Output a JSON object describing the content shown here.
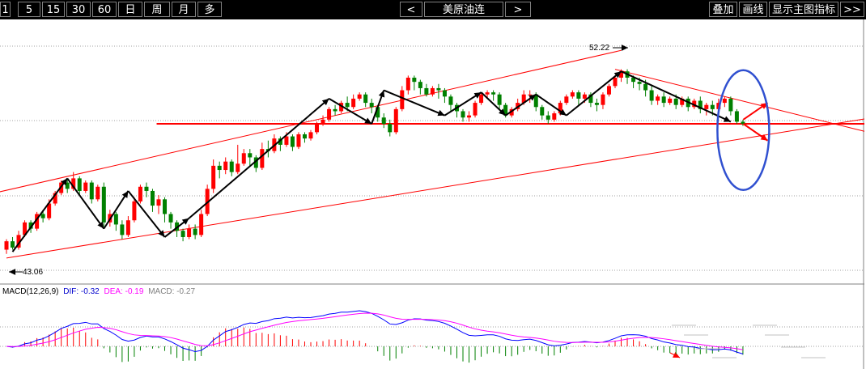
{
  "toolbar": {
    "periods": [
      "1",
      "5",
      "15",
      "30",
      "60",
      "日",
      "周",
      "月",
      "多"
    ],
    "prev": "<",
    "symbol": "美原油连",
    "next": ">",
    "right_buttons": [
      "叠加",
      "画线",
      "显示主图指标",
      ">>"
    ]
  },
  "chart_data": {
    "type": "candlestick",
    "price_range": [
      42.0,
      54.5
    ],
    "labels": {
      "high": "52.22",
      "low": "43.06"
    },
    "candles": [
      [
        43.6,
        44.0,
        43.4,
        44.1
      ],
      [
        44.0,
        43.7,
        43.6,
        44.2
      ],
      [
        43.7,
        44.3,
        43.6,
        44.5
      ],
      [
        44.3,
        44.9,
        44.2,
        45.0
      ],
      [
        44.9,
        44.6,
        44.4,
        45.0
      ],
      [
        44.6,
        45.3,
        44.5,
        45.4
      ],
      [
        45.3,
        45.1,
        44.9,
        45.5
      ],
      [
        45.1,
        45.8,
        45.0,
        46.0
      ],
      [
        45.8,
        46.3,
        45.7,
        46.4
      ],
      [
        46.3,
        46.8,
        46.2,
        46.9
      ],
      [
        46.8,
        46.5,
        46.3,
        47.0
      ],
      [
        46.5,
        47.0,
        46.4,
        47.3
      ],
      [
        47.0,
        46.4,
        46.2,
        47.1
      ],
      [
        46.4,
        46.8,
        46.3,
        46.9
      ],
      [
        46.8,
        46.0,
        45.8,
        46.9
      ],
      [
        46.0,
        46.6,
        45.9,
        46.7
      ],
      [
        46.6,
        44.9,
        44.7,
        46.8
      ],
      [
        44.9,
        45.3,
        44.7,
        45.5
      ],
      [
        45.3,
        44.8,
        44.5,
        45.4
      ],
      [
        44.8,
        44.3,
        44.1,
        45.0
      ],
      [
        44.3,
        45.0,
        44.2,
        45.2
      ],
      [
        45.0,
        45.9,
        44.9,
        46.1
      ],
      [
        45.9,
        46.6,
        45.8,
        46.7
      ],
      [
        46.6,
        46.4,
        46.1,
        46.8
      ],
      [
        46.4,
        45.7,
        45.4,
        46.5
      ],
      [
        45.7,
        46.0,
        45.3,
        46.2
      ],
      [
        46.0,
        45.3,
        44.9,
        46.1
      ],
      [
        45.3,
        44.9,
        44.6,
        45.4
      ],
      [
        44.9,
        44.5,
        44.2,
        45.0
      ],
      [
        44.5,
        44.2,
        44.0,
        44.6
      ],
      [
        44.2,
        44.6,
        44.1,
        44.8
      ],
      [
        44.6,
        44.3,
        44.1,
        44.8
      ],
      [
        44.3,
        45.3,
        44.2,
        45.5
      ],
      [
        45.3,
        46.5,
        45.2,
        46.7
      ],
      [
        46.5,
        47.6,
        46.3,
        47.9
      ],
      [
        47.6,
        47.4,
        47.0,
        47.8
      ],
      [
        47.4,
        47.8,
        47.2,
        48.0
      ],
      [
        47.8,
        47.3,
        47.1,
        47.9
      ],
      [
        47.3,
        47.7,
        47.2,
        48.6
      ],
      [
        47.7,
        48.2,
        47.6,
        48.4
      ],
      [
        48.2,
        48.0,
        47.6,
        48.4
      ],
      [
        48.0,
        47.5,
        47.3,
        48.1
      ],
      [
        47.5,
        48.4,
        47.4,
        48.7
      ],
      [
        48.4,
        48.3,
        48.0,
        48.8
      ],
      [
        48.3,
        48.9,
        48.2,
        49.1
      ],
      [
        48.9,
        48.6,
        48.3,
        49.0
      ],
      [
        48.6,
        49.0,
        48.5,
        49.2
      ],
      [
        49.0,
        48.5,
        48.3,
        49.1
      ],
      [
        48.5,
        49.1,
        48.4,
        49.2
      ],
      [
        49.1,
        48.9,
        48.7,
        49.2
      ],
      [
        48.9,
        49.2,
        48.8,
        49.3
      ],
      [
        49.2,
        49.6,
        49.1,
        49.7
      ],
      [
        49.6,
        49.8,
        49.5,
        50.0
      ],
      [
        49.8,
        50.3,
        49.7,
        50.4
      ],
      [
        50.3,
        50.2,
        50.0,
        50.5
      ],
      [
        50.2,
        50.6,
        50.1,
        50.7
      ],
      [
        50.6,
        50.4,
        50.2,
        50.9
      ],
      [
        50.4,
        50.8,
        50.3,
        51.0
      ],
      [
        50.8,
        51.0,
        50.7,
        51.1
      ],
      [
        51.0,
        50.6,
        50.4,
        51.1
      ],
      [
        50.6,
        50.4,
        50.1,
        50.8
      ],
      [
        50.4,
        49.9,
        49.7,
        50.5
      ],
      [
        49.9,
        49.6,
        49.4,
        50.1
      ],
      [
        49.6,
        49.2,
        49.0,
        49.8
      ],
      [
        49.2,
        50.3,
        49.1,
        50.4
      ],
      [
        50.3,
        51.2,
        50.2,
        51.4
      ],
      [
        51.2,
        51.8,
        51.0,
        51.9
      ],
      [
        51.8,
        51.6,
        51.2,
        51.9
      ],
      [
        51.6,
        51.3,
        51.0,
        51.7
      ],
      [
        51.3,
        51.0,
        50.9,
        51.5
      ],
      [
        51.0,
        51.3,
        50.9,
        51.4
      ],
      [
        51.3,
        51.2,
        50.8,
        51.5
      ],
      [
        51.2,
        50.9,
        50.6,
        51.3
      ],
      [
        50.9,
        50.5,
        50.2,
        51.0
      ],
      [
        50.5,
        50.2,
        49.9,
        50.6
      ],
      [
        50.2,
        49.9,
        49.7,
        50.3
      ],
      [
        49.9,
        50.0,
        49.7,
        50.2
      ],
      [
        50.0,
        50.6,
        49.9,
        50.7
      ],
      [
        50.6,
        51.0,
        50.5,
        51.1
      ],
      [
        51.0,
        51.1,
        50.8,
        51.2
      ],
      [
        51.1,
        51.0,
        50.7,
        51.2
      ],
      [
        51.0,
        50.5,
        50.3,
        51.1
      ],
      [
        50.5,
        50.0,
        49.9,
        50.6
      ],
      [
        50.0,
        50.3,
        49.9,
        50.4
      ],
      [
        50.3,
        50.6,
        50.2,
        50.8
      ],
      [
        50.6,
        51.0,
        50.5,
        51.2
      ],
      [
        51.0,
        51.0,
        50.6,
        51.2
      ],
      [
        51.0,
        50.4,
        50.2,
        51.1
      ],
      [
        50.4,
        50.0,
        49.8,
        50.5
      ],
      [
        50.0,
        49.8,
        49.6,
        50.2
      ],
      [
        49.8,
        50.1,
        49.7,
        50.2
      ],
      [
        50.1,
        50.6,
        50.0,
        50.7
      ],
      [
        50.6,
        50.9,
        50.5,
        51.0
      ],
      [
        50.9,
        51.1,
        50.8,
        51.2
      ],
      [
        51.1,
        50.8,
        50.5,
        51.2
      ],
      [
        50.8,
        51.0,
        50.6,
        51.1
      ],
      [
        51.0,
        50.6,
        50.4,
        51.1
      ],
      [
        50.6,
        50.5,
        50.2,
        50.8
      ],
      [
        50.5,
        51.0,
        50.3,
        51.1
      ],
      [
        51.0,
        51.4,
        50.9,
        51.5
      ],
      [
        51.4,
        51.8,
        51.3,
        51.9
      ],
      [
        51.8,
        52.1,
        51.6,
        52.2
      ],
      [
        52.1,
        51.8,
        51.5,
        52.2
      ],
      [
        51.8,
        51.6,
        51.3,
        51.9
      ],
      [
        51.6,
        51.5,
        51.2,
        51.8
      ],
      [
        51.5,
        51.2,
        50.9,
        51.7
      ],
      [
        51.2,
        50.7,
        50.5,
        51.4
      ],
      [
        50.7,
        50.9,
        50.5,
        51.0
      ],
      [
        50.9,
        50.6,
        50.4,
        51.1
      ],
      [
        50.6,
        50.8,
        50.5,
        50.9
      ],
      [
        50.8,
        50.5,
        50.3,
        51.0
      ],
      [
        50.5,
        50.8,
        50.4,
        50.9
      ],
      [
        50.8,
        50.4,
        50.2,
        50.9
      ],
      [
        50.4,
        50.7,
        50.3,
        50.8
      ],
      [
        50.7,
        50.3,
        50.1,
        50.9
      ],
      [
        50.3,
        50.5,
        50.0,
        50.6
      ],
      [
        50.5,
        50.3,
        50.0,
        50.7
      ],
      [
        50.3,
        50.6,
        50.2,
        50.8
      ],
      [
        50.6,
        50.8,
        50.4,
        50.9
      ],
      [
        50.8,
        50.2,
        50.0,
        50.9
      ],
      [
        50.2,
        49.7,
        49.6,
        50.3
      ],
      [
        49.7,
        49.6,
        49.5,
        49.8
      ]
    ],
    "price_lines": [
      {
        "kind": "support",
        "price": 49.6,
        "from": 26,
        "to": 136,
        "color": "#ff0000"
      },
      {
        "kind": "upper-channel",
        "from": [
          -2,
          46.3
        ],
        "to": [
          101,
          53.1
        ],
        "color": "#ff0000"
      },
      {
        "kind": "lower-channel",
        "from": [
          0,
          43.2
        ],
        "to": [
          136,
          49.6
        ],
        "color": "#ff0000"
      },
      {
        "kind": "descending-trendline",
        "from": [
          100,
          52.2
        ],
        "to": [
          136,
          49.6
        ],
        "color": "#ff0000"
      }
    ],
    "wave_path": [
      [
        1,
        43.5
      ],
      [
        10,
        47.0
      ],
      [
        16,
        44.6
      ],
      [
        20,
        46.4
      ],
      [
        26,
        44.2
      ],
      [
        30,
        45.1
      ],
      [
        53,
        50.8
      ],
      [
        60,
        49.6
      ],
      [
        62,
        51.2
      ],
      [
        72,
        50.0
      ],
      [
        78,
        51.1
      ],
      [
        82,
        50.0
      ],
      [
        87,
        51.0
      ],
      [
        92,
        50.0
      ],
      [
        101,
        52.1
      ],
      [
        119,
        49.7
      ]
    ],
    "projection_arrows": [
      {
        "from": [
          120,
          49.8
        ],
        "to": [
          124,
          50.6
        ],
        "color": "#ff0000"
      },
      {
        "from": [
          120,
          49.6
        ],
        "to": [
          124,
          48.8
        ],
        "color": "#ff0000"
      }
    ],
    "highlight_ellipse": {
      "center": [
        120,
        49.3
      ],
      "color": "#3050d0"
    },
    "macd": {
      "title": "MACD(12,26,9)",
      "dif_label": "DIF:",
      "dif": -0.32,
      "dea_label": "DEA:",
      "dea": -0.19,
      "macd_label": "MACD:",
      "macd": -0.27,
      "colors": {
        "dif": "#0000ff",
        "dea": "#ff00ff",
        "pos": "#ff0000",
        "neg": "#008000"
      }
    }
  }
}
